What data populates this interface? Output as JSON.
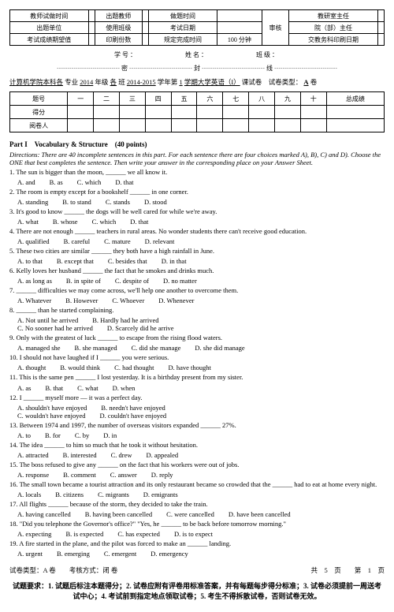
{
  "header": {
    "rows": [
      [
        "教师试做时间",
        "",
        "出题教师",
        "",
        "做题时间",
        "",
        "审核",
        "教研室主任",
        ""
      ],
      [
        "出题单位",
        "",
        "使用班级",
        "",
        "考试日期",
        "",
        "",
        "院（部）主任",
        ""
      ],
      [
        "考试成绩期望值",
        "",
        "印刷份数",
        "",
        "规定完成时间",
        "100 分钟",
        "",
        "交教务科印刷日期",
        ""
      ]
    ]
  },
  "info": {
    "xuehao": "学号：",
    "xingming": "姓名：",
    "banji": "班级："
  },
  "dotted": "┄┄┄┄┄┄┄┄┄┄ 密 ┄┄┄┄┄┄┄┄┄┄ 封 ┄┄┄┄┄┄┄┄┄┄ 线 ┄┄┄┄┄┄┄┄┄┄",
  "title": {
    "p1": "计算机学院本科各",
    "p2": "专业",
    "p3": "2014",
    "p4": "年级",
    "p5": "各",
    "p6": "班",
    "p7": "2014-2015",
    "p8": "学年第",
    "p9": "1",
    "p10": "学期大学英语（I）",
    "p11": "课试卷　试卷类型：",
    "type": "A",
    "p12": "卷"
  },
  "score": {
    "heads": [
      "题号",
      "一",
      "二",
      "三",
      "四",
      "五",
      "六",
      "七",
      "八",
      "九",
      "十",
      "总成绩"
    ],
    "r1": "得分",
    "r2": "阅卷人"
  },
  "part1": {
    "title": "Part I　Vocabulary & Structure　(40 points)",
    "dir": "Directions: There are 40 incomplete sentences in this part. For each sentence there are four choices marked A), B), C) and D). Choose the ONE that best completes the sentence. Then write your answer in the corresponding place on your Answer Sheet."
  },
  "q": [
    {
      "t": "1. The sun is bigger than the moon, ______ we all know it.",
      "o": [
        "A. and",
        "B. as",
        "C. which",
        "D. that"
      ]
    },
    {
      "t": "2. The room is empty except for a bookshelf ______ in one corner.",
      "o": [
        "A. standing",
        "B. to stand",
        "C. stands",
        "D. stood"
      ]
    },
    {
      "t": "3. It's good to know ______ the dogs will be well cared for while we're away.",
      "o": [
        "A. what",
        "B. whose",
        "C. which",
        "D. that"
      ]
    },
    {
      "t": "4. There are not enough ______ teachers in rural areas. No wonder students there can't receive good education.",
      "o": [
        "A. qualified",
        "B. careful",
        "C. mature",
        "D. relevant"
      ]
    },
    {
      "t": "5. These two cities are similar ______ they both have a high rainfall in June.",
      "o": [
        "A. to that",
        "B. except that",
        "C. besides that",
        "D. in that"
      ]
    },
    {
      "t": "6. Kelly loves her husband ______ the fact that he smokes and drinks much.",
      "o": [
        "A. as long as",
        "B. in spite of",
        "C. despite of",
        "D. no matter"
      ]
    },
    {
      "t": "7. ______ difficulties we may come across, we'll help one another to overcome them.",
      "o": [
        "A. Whatever",
        "B. However",
        "C. Whoever",
        "D. Whenever"
      ]
    },
    {
      "t": "8. ______ than he started complaining.",
      "o2": [
        "A. Not until he arrived",
        "B. Hardly had he arrived",
        "C. No sooner had he arrived",
        "D. Scarcely did he arrive"
      ]
    },
    {
      "t": "9. Only with the greatest of luck ______ to escape from the rising flood waters.",
      "o": [
        "A. managed she",
        "B. she managed",
        "C. did she manage",
        "D. she did manage"
      ]
    },
    {
      "t": "10. I should not have laughed if I ______ you were serious.",
      "o": [
        "A. thought",
        "B. would think",
        "C. had thought",
        "D. have thought"
      ]
    },
    {
      "t": "11. This is the same pen ______ I lost yesterday. It is a birthday present from my sister.",
      "o": [
        "A. as",
        "B. that",
        "C. what",
        "D. when"
      ]
    },
    {
      "t": "12. I ______ myself more — it was a perfect day.",
      "o2": [
        "A. shouldn't have enjoyed",
        "B. needn't have enjoyed",
        "C. wouldn't have enjoyed",
        "D. couldn't have enjoyed"
      ]
    },
    {
      "t": "13. Between 1974 and 1997, the number of overseas visitors expanded ______ 27%.",
      "o": [
        "A. to",
        "B. for",
        "C. by",
        "D. in"
      ]
    },
    {
      "t": "14. The idea ______ to him so much that he took it without hesitation.",
      "o": [
        "A. attracted",
        "B. interested",
        "C. drew",
        "D. appealed"
      ]
    },
    {
      "t": "15. The boss refused to give any ______ on the fact that his workers were out of jobs.",
      "o": [
        "A. response",
        "B. comment",
        "C. answer",
        "D. reply"
      ]
    },
    {
      "t": "16. The small town became a tourist attraction and its only restaurant became so crowded that the ______ had to eat at home every night.",
      "o": [
        "A. locals",
        "B. citizens",
        "C. migrants",
        "D. emigrants"
      ]
    },
    {
      "t": "17. All flights ______ because of the storm, they decided to take the train.",
      "o": [
        "A. having cancelled",
        "B. having been cancelled",
        "C. were cancelled",
        "D. have been cancelled"
      ]
    },
    {
      "t": "18. \"Did you telephone the Governor's office?\" \"Yes, he ______ to be back before tomorrow morning.\"",
      "o": [
        "A. expecting",
        "B. is expected",
        "C. has expected",
        "D. is to expect"
      ]
    },
    {
      "t": "19. A fire started in the plane, and the pilot was forced to make an ______ landing.",
      "o": [
        "A. urgent",
        "B. emerging",
        "C. emergent",
        "D. emergency"
      ]
    }
  ],
  "footer": {
    "left": "试卷类型：A 卷　　考核方式：闭 卷",
    "right": "共　5　页　　第　1　页",
    "req": "试题要求：1. 试题后标注本题得分；2. 试卷应附有评卷用标准答案，并有每题每步得分标准；3. 试卷必须提前一周送考试中心；4. 考试前到指定地点领取试卷；5. 考生不得拆散试卷，否则试卷无效。"
  }
}
